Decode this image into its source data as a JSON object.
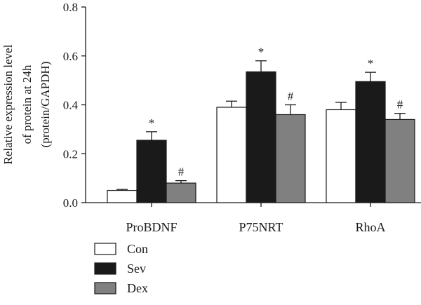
{
  "chart_data": {
    "type": "bar",
    "ylabel_lines": [
      "Relative expression level",
      "of protein at 24h",
      "(protein/GAPDH)"
    ],
    "categories": [
      "ProBDNF",
      "P75NRT",
      "RhoA"
    ],
    "ylim": [
      0,
      0.8
    ],
    "yticks": [
      "0.0",
      "0.2",
      "0.4",
      "0.6",
      "0.8"
    ],
    "grid": false,
    "legend_position": "bottom-left",
    "series": [
      {
        "name": "Con",
        "color": "#ffffff",
        "values": [
          0.05,
          0.39,
          0.38
        ],
        "errors": [
          0.004,
          0.025,
          0.03
        ],
        "annotations": [
          "",
          "",
          ""
        ]
      },
      {
        "name": "Sev",
        "color": "#1a1a1a",
        "values": [
          0.255,
          0.535,
          0.495
        ],
        "errors": [
          0.035,
          0.045,
          0.038
        ],
        "annotations": [
          "*",
          "*",
          "*"
        ]
      },
      {
        "name": "Dex",
        "color": "#808080",
        "values": [
          0.08,
          0.36,
          0.34
        ],
        "errors": [
          0.01,
          0.04,
          0.025
        ],
        "annotations": [
          "#",
          "#",
          "#"
        ]
      }
    ]
  }
}
